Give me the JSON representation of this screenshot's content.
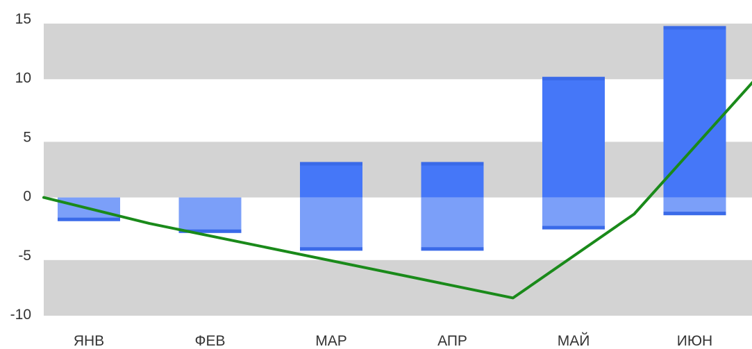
{
  "chart_data": {
    "type": "bar",
    "title": "",
    "xlabel": "",
    "ylabel": "",
    "categories": [
      "ЯНВ",
      "ФЕВ",
      "МАР",
      "АПР",
      "МАЙ",
      "ИЮН"
    ],
    "ylim": [
      -10,
      15
    ],
    "yticks": [
      15,
      10,
      5,
      0,
      -5,
      -10
    ],
    "ytick_labels": [
      "15",
      "10",
      "5",
      "0",
      "-5",
      "-10"
    ],
    "bars": [
      {
        "low": -2,
        "high": 0
      },
      {
        "low": -3,
        "high": 0
      },
      {
        "low": -4.5,
        "high": 3
      },
      {
        "low": -4.5,
        "high": 3
      },
      {
        "low": -2.7,
        "high": 10.2
      },
      {
        "low": -1.5,
        "high": 14.5
      }
    ],
    "line": {
      "x": [
        0,
        0.5,
        3.5,
        4.5,
        5.5
      ],
      "y": [
        0,
        -2.2,
        -8.5,
        -1.4,
        10
      ]
    },
    "grid": "alternating horizontal bands",
    "colors": {
      "band": "#d3d3d3",
      "bar_positive": "#4577f8",
      "bar_negative": "#7b9ff9",
      "bar_edge": "#3a6ae8",
      "line": "#1a8a1a"
    }
  }
}
